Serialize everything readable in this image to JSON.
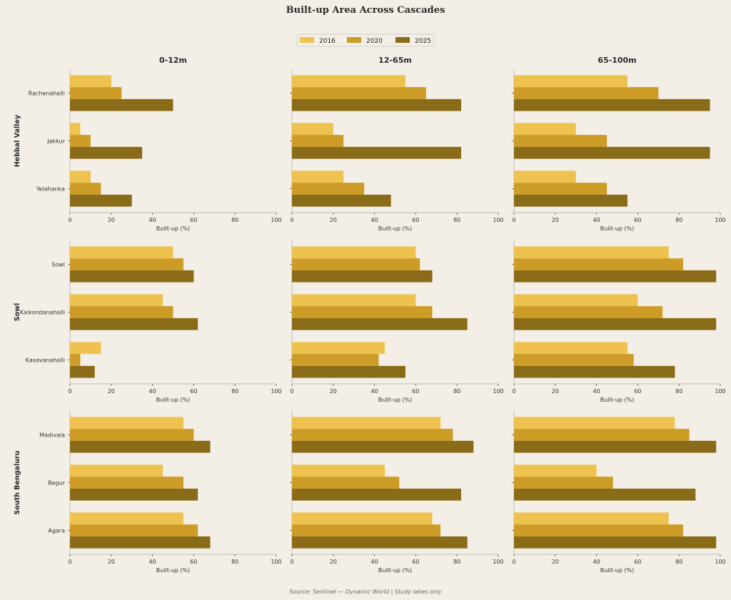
{
  "chart_data": {
    "type": "bar",
    "orientation": "horizontal",
    "title": "Built-up Area Across Cascades",
    "source": "Source: Sentinel — Dynamic World  |  Study lakes only",
    "xlabel": "Built-up (%)",
    "xlim": [
      0,
      100
    ],
    "xticks": [
      0,
      20,
      40,
      60,
      80,
      100
    ],
    "legend_position": "top-center",
    "series_names": [
      "2016",
      "2020",
      "2025"
    ],
    "colors": {
      "2016": "#eec24f",
      "2020": "#cc9c26",
      "2025": "#8a6c18"
    },
    "columns": [
      "0-12m",
      "12-65m",
      "65-100m"
    ],
    "rows": [
      {
        "name": "Hebbal Valley",
        "categories": [
          "Rachenahalli",
          "Jakkur",
          "Yelahanka"
        ],
        "panels": [
          {
            "column": "0-12m",
            "series": [
              {
                "name": "2016",
                "values": [
                  20,
                  5,
                  10
                ]
              },
              {
                "name": "2020",
                "values": [
                  25,
                  10,
                  15
                ]
              },
              {
                "name": "2025",
                "values": [
                  50,
                  35,
                  30
                ]
              }
            ]
          },
          {
            "column": "12-65m",
            "series": [
              {
                "name": "2016",
                "values": [
                  55,
                  20,
                  25
                ]
              },
              {
                "name": "2020",
                "values": [
                  65,
                  25,
                  35
                ]
              },
              {
                "name": "2025",
                "values": [
                  82,
                  82,
                  48
                ]
              }
            ]
          },
          {
            "column": "65-100m",
            "series": [
              {
                "name": "2016",
                "values": [
                  55,
                  30,
                  30
                ]
              },
              {
                "name": "2020",
                "values": [
                  70,
                  45,
                  45
                ]
              },
              {
                "name": "2025",
                "values": [
                  95,
                  95,
                  55
                ]
              }
            ]
          }
        ]
      },
      {
        "name": "Sowl",
        "categories": [
          "Sowl",
          "Kaikondanahalli",
          "Kasavanahalli"
        ],
        "panels": [
          {
            "column": "0-12m",
            "series": [
              {
                "name": "2016",
                "values": [
                  50,
                  45,
                  15
                ]
              },
              {
                "name": "2020",
                "values": [
                  55,
                  50,
                  5
                ]
              },
              {
                "name": "2025",
                "values": [
                  60,
                  62,
                  12
                ]
              }
            ]
          },
          {
            "column": "12-65m",
            "series": [
              {
                "name": "2016",
                "values": [
                  60,
                  60,
                  45
                ]
              },
              {
                "name": "2020",
                "values": [
                  62,
                  68,
                  42
                ]
              },
              {
                "name": "2025",
                "values": [
                  68,
                  85,
                  55
                ]
              }
            ]
          },
          {
            "column": "65-100m",
            "series": [
              {
                "name": "2016",
                "values": [
                  75,
                  60,
                  55
                ]
              },
              {
                "name": "2020",
                "values": [
                  82,
                  72,
                  58
                ]
              },
              {
                "name": "2025",
                "values": [
                  98,
                  98,
                  78
                ]
              }
            ]
          }
        ]
      },
      {
        "name": "South Bengaluru",
        "categories": [
          "Madivala",
          "Begur",
          "Agara"
        ],
        "panels": [
          {
            "column": "0-12m",
            "series": [
              {
                "name": "2016",
                "values": [
                  55,
                  45,
                  55
                ]
              },
              {
                "name": "2020",
                "values": [
                  60,
                  55,
                  62
                ]
              },
              {
                "name": "2025",
                "values": [
                  68,
                  62,
                  68
                ]
              }
            ]
          },
          {
            "column": "12-65m",
            "series": [
              {
                "name": "2016",
                "values": [
                  72,
                  45,
                  68
                ]
              },
              {
                "name": "2020",
                "values": [
                  78,
                  52,
                  72
                ]
              },
              {
                "name": "2025",
                "values": [
                  88,
                  82,
                  85
                ]
              }
            ]
          },
          {
            "column": "65-100m",
            "series": [
              {
                "name": "2016",
                "values": [
                  78,
                  40,
                  75
                ]
              },
              {
                "name": "2020",
                "values": [
                  85,
                  48,
                  82
                ]
              },
              {
                "name": "2025",
                "values": [
                  98,
                  88,
                  98
                ]
              }
            ]
          }
        ]
      }
    ]
  }
}
